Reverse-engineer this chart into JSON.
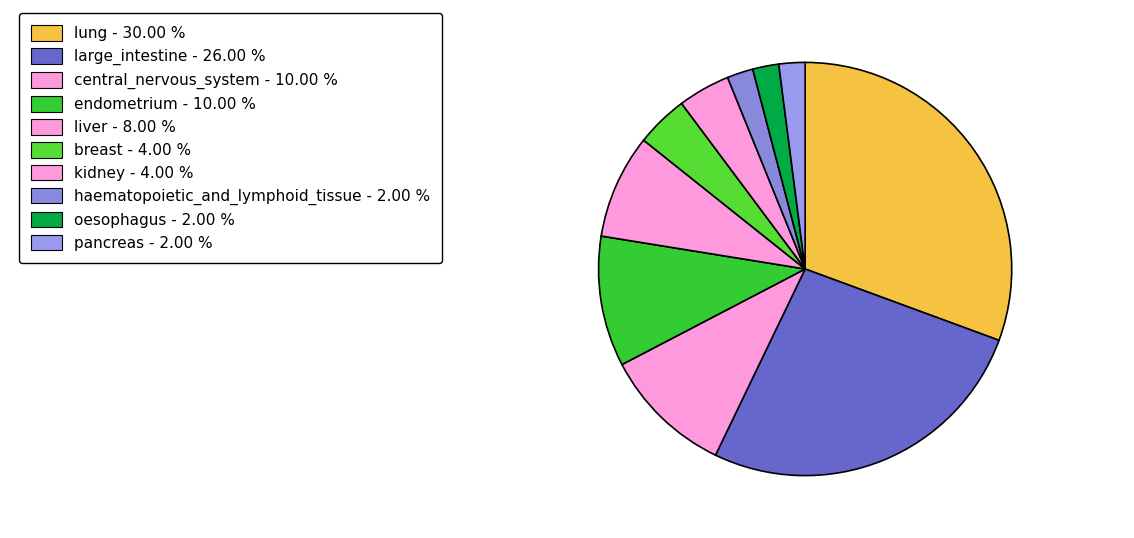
{
  "labels": [
    "lung",
    "large_intestine",
    "central_nervous_system",
    "endometrium",
    "liver",
    "breast",
    "kidney",
    "haematopoietic_and_lymphoid_tissue",
    "oesophagus",
    "pancreas"
  ],
  "values": [
    30,
    26,
    10,
    10,
    8,
    4,
    4,
    2,
    2,
    2
  ],
  "colors": [
    "#F5C242",
    "#6666CC",
    "#FF99DD",
    "#33CC33",
    "#FF99DD",
    "#55DD33",
    "#FF99DD",
    "#8888DD",
    "#00AA44",
    "#9999EE"
  ],
  "legend_labels": [
    "lung - 30.00 %",
    "large_intestine - 26.00 %",
    "central_nervous_system - 10.00 %",
    "endometrium - 10.00 %",
    "liver - 8.00 %",
    "breast - 4.00 %",
    "kidney - 4.00 %",
    "haematopoietic_and_lymphoid_tissue - 2.00 %",
    "oesophagus - 2.00 %",
    "pancreas - 2.00 %"
  ],
  "background_color": "#ffffff",
  "startangle": 90,
  "legend_fontsize": 11
}
